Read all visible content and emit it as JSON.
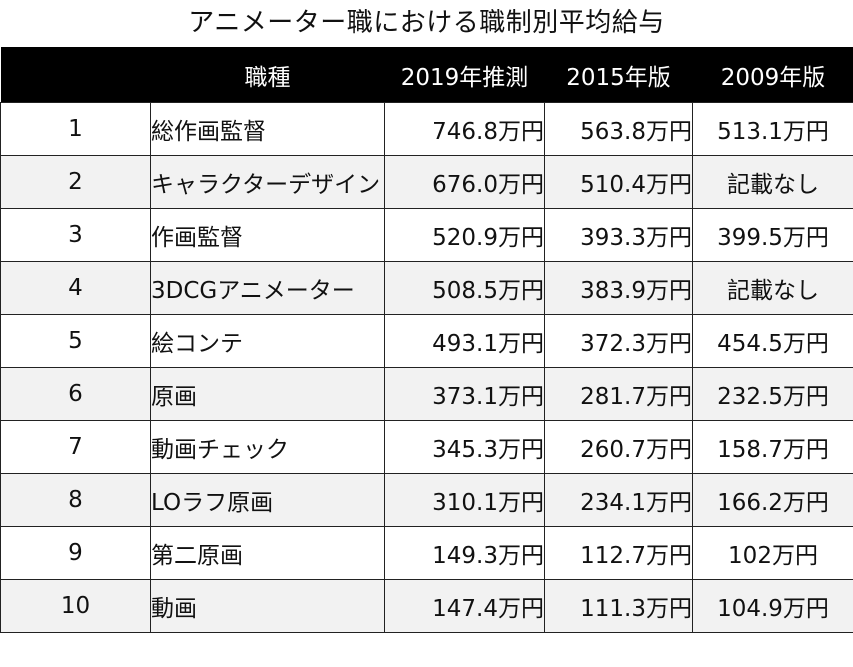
{
  "title": "アニメーター職における職制別平均給与",
  "columns": {
    "no": "",
    "job": "職種",
    "y2019": "2019年推測",
    "y2015": "2015年版",
    "y2009": "2009年版"
  },
  "rows": [
    {
      "no": "1",
      "job": "総作画監督",
      "y2019": "746.8万円",
      "y2015": "563.8万円",
      "y2009": "513.1万円"
    },
    {
      "no": "2",
      "job": "キャラクターデザイン",
      "y2019": "676.0万円",
      "y2015": "510.4万円",
      "y2009": "記載なし"
    },
    {
      "no": "3",
      "job": "作画監督",
      "y2019": "520.9万円",
      "y2015": "393.3万円",
      "y2009": "399.5万円"
    },
    {
      "no": "4",
      "job": "3DCGアニメーター",
      "y2019": "508.5万円",
      "y2015": "383.9万円",
      "y2009": "記載なし"
    },
    {
      "no": "5",
      "job": "絵コンテ",
      "y2019": "493.1万円",
      "y2015": "372.3万円",
      "y2009": "454.5万円"
    },
    {
      "no": "6",
      "job": "原画",
      "y2019": "373.1万円",
      "y2015": "281.7万円",
      "y2009": "232.5万円"
    },
    {
      "no": "7",
      "job": "動画チェック",
      "y2019": "345.3万円",
      "y2015": "260.7万円",
      "y2009": "158.7万円"
    },
    {
      "no": "8",
      "job": "LOラフ原画",
      "y2019": "310.1万円",
      "y2015": "234.1万円",
      "y2009": "166.2万円"
    },
    {
      "no": "9",
      "job": "第二原画",
      "y2019": "149.3万円",
      "y2015": "112.7万円",
      "y2009": "102万円"
    },
    {
      "no": "10",
      "job": "動画",
      "y2019": "147.4万円",
      "y2015": "111.3万円",
      "y2009": "104.9万円"
    }
  ]
}
